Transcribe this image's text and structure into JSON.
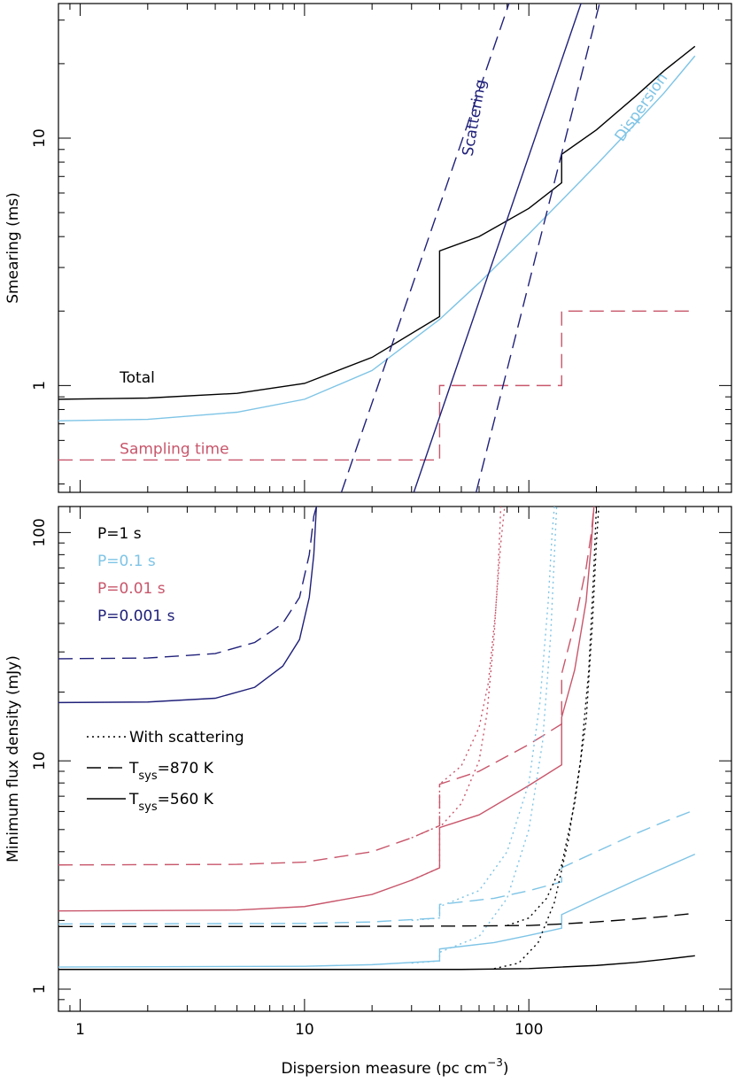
{
  "colors": {
    "black": "#000000",
    "light_blue": "#7ec4e6",
    "red": "#c8566b",
    "navy": "#20207a"
  },
  "chart_data": [
    {
      "type": "line",
      "panel": "top",
      "xscale": "log",
      "yscale": "log",
      "xlim": [
        0.8,
        800
      ],
      "ylim": [
        0.37,
        35
      ],
      "xlabel": "",
      "ylabel": "Smearing (ms)",
      "x_ticks": [
        1,
        10,
        100
      ],
      "x_tick_labels": [
        "",
        "",
        ""
      ],
      "y_ticks": [
        1,
        10
      ],
      "y_tick_labels": [
        "1",
        "10"
      ],
      "annotations": [
        {
          "text": "Total",
          "color": "black",
          "x": 1.5,
          "y": 1.03,
          "angle": 0
        },
        {
          "text": "Sampling time",
          "color": "red",
          "x": 1.5,
          "y": 0.53,
          "angle": 0
        },
        {
          "text": "Scattering",
          "color": "navy",
          "x": 60,
          "y": 12,
          "angle": -80
        },
        {
          "text": "Dispersion",
          "color": "light_blue",
          "x": 330,
          "y": 13,
          "angle": -55
        }
      ],
      "series": [
        {
          "name": "Total",
          "color": "black",
          "dash": "solid",
          "x": [
            0.8,
            2,
            5,
            10,
            20,
            40,
            40,
            60,
            100,
            140,
            140,
            200,
            300,
            400,
            550
          ],
          "y": [
            0.88,
            0.89,
            0.93,
            1.02,
            1.3,
            1.9,
            3.5,
            4.0,
            5.2,
            6.6,
            8.6,
            10.8,
            14.8,
            18.7,
            23.5
          ]
        },
        {
          "name": "Dispersion",
          "color": "light_blue",
          "dash": "solid",
          "x": [
            0.8,
            2,
            5,
            10,
            20,
            40,
            60,
            100,
            140,
            200,
            300,
            400,
            550
          ],
          "y": [
            0.72,
            0.73,
            0.78,
            0.88,
            1.15,
            1.85,
            2.6,
            4.1,
            5.6,
            7.8,
            11.5,
            15.2,
            21.5
          ]
        },
        {
          "name": "Sampling time",
          "color": "red",
          "dash": "dashed",
          "x": [
            0.8,
            40,
            40,
            140,
            140,
            550
          ],
          "y": [
            0.5,
            0.5,
            1.0,
            1.0,
            2.0,
            2.0
          ]
        },
        {
          "name": "Scattering",
          "color": "navy",
          "dash": "solid",
          "x": [
            30.7,
            170.7
          ],
          "y": [
            0.37,
            35
          ]
        },
        {
          "name": "Scattering upper",
          "color": "navy",
          "dash": "dashed",
          "x": [
            14.6,
            81.5
          ],
          "y": [
            0.37,
            35
          ]
        },
        {
          "name": "Scattering lower",
          "color": "navy",
          "dash": "dashed",
          "x": [
            58.2,
            206.5
          ],
          "y": [
            0.37,
            35
          ]
        }
      ]
    },
    {
      "type": "line",
      "panel": "bottom",
      "xscale": "log",
      "yscale": "log",
      "xlim": [
        0.8,
        800
      ],
      "ylim": [
        0.8,
        130
      ],
      "xlabel": "Dispersion measure (pc cm",
      "xlabel_sup": "−3",
      "xlabel_end": ")",
      "ylabel": "Minimum flux density (mJy)",
      "x_ticks": [
        1,
        10,
        100
      ],
      "x_tick_labels": [
        "1",
        "10",
        "100"
      ],
      "y_ticks": [
        1,
        10,
        100
      ],
      "y_tick_labels": [
        "1",
        "10",
        "100"
      ],
      "legend_periods": [
        {
          "text": "P=1 s",
          "color": "black"
        },
        {
          "text": "P=0.1 s",
          "color": "light_blue"
        },
        {
          "text": "P=0.01 s",
          "color": "red"
        },
        {
          "text": "P=0.001 s",
          "color": "navy"
        }
      ],
      "legend_styles": [
        {
          "text": "With scattering",
          "dash": "dotted"
        },
        {
          "text": "T",
          "sub": "sys",
          "text_end": "=870 K",
          "dash": "dashed"
        },
        {
          "text": "T",
          "sub": "sys",
          "text_end": "=560 K",
          "dash": "solid"
        }
      ],
      "series": [
        {
          "name": "P=0.001 s, Tsys=560 K",
          "color": "navy",
          "dash": "solid",
          "x": [
            0.8,
            2,
            4,
            6,
            8,
            9.5,
            10.5,
            11,
            11.3
          ],
          "y": [
            18,
            18.1,
            18.8,
            21,
            26,
            34,
            52,
            80,
            130
          ]
        },
        {
          "name": "P=0.001 s, Tsys=870 K",
          "color": "navy",
          "dash": "dashed",
          "x": [
            0.8,
            2,
            4,
            6,
            8,
            9.5,
            10.5,
            11,
            11.3
          ],
          "y": [
            28,
            28.2,
            29.5,
            33,
            40,
            52,
            80,
            118,
            130
          ]
        },
        {
          "name": "P=0.01 s, Tsys=560 K",
          "color": "red",
          "dash": "solid",
          "x": [
            0.8,
            5,
            10,
            20,
            30,
            40,
            40,
            60,
            100,
            140,
            140,
            160,
            180,
            190,
            195
          ],
          "y": [
            2.2,
            2.22,
            2.3,
            2.6,
            3.0,
            3.4,
            5.1,
            5.8,
            7.8,
            9.6,
            15.5,
            25,
            50,
            90,
            130
          ]
        },
        {
          "name": "P=0.01 s, Tsys=870 K",
          "color": "red",
          "dash": "dashed",
          "x": [
            0.8,
            5,
            10,
            20,
            30,
            40,
            40,
            60,
            100,
            140,
            140,
            160,
            180,
            190,
            195
          ],
          "y": [
            3.5,
            3.52,
            3.6,
            4.0,
            4.6,
            5.2,
            7.9,
            9.0,
            11.8,
            14.5,
            24,
            40,
            70,
            100,
            130
          ]
        },
        {
          "name": "P=0.01 s, with scattering 560 K",
          "color": "red",
          "dash": "dotted",
          "x": [
            30,
            40,
            40,
            50,
            60,
            65,
            70,
            73,
            75
          ],
          "y": [
            3.0,
            3.4,
            5.1,
            6.5,
            10,
            16,
            35,
            70,
            130
          ]
        },
        {
          "name": "P=0.01 s, with scattering 870 K",
          "color": "red",
          "dash": "dotted",
          "x": [
            30,
            40,
            40,
            50,
            60,
            66,
            71,
            75,
            78
          ],
          "y": [
            4.6,
            5.2,
            7.9,
            9.5,
            14,
            22,
            45,
            90,
            130
          ]
        },
        {
          "name": "P=0.1 s, Tsys=560 K",
          "color": "light_blue",
          "dash": "solid",
          "x": [
            0.8,
            10,
            20,
            40,
            40,
            70,
            100,
            140,
            140,
            200,
            300,
            400,
            550
          ],
          "y": [
            1.25,
            1.26,
            1.28,
            1.33,
            1.5,
            1.6,
            1.72,
            1.85,
            2.12,
            2.5,
            3.0,
            3.4,
            3.9
          ]
        },
        {
          "name": "P=0.1 s, Tsys=870 K",
          "color": "light_blue",
          "dash": "dashed",
          "x": [
            0.8,
            10,
            20,
            40,
            40,
            70,
            100,
            140,
            140,
            200,
            300,
            400,
            550
          ],
          "y": [
            1.93,
            1.94,
            1.97,
            2.05,
            2.35,
            2.5,
            2.7,
            2.95,
            3.4,
            4.0,
            4.8,
            5.4,
            6.1
          ]
        },
        {
          "name": "P=0.1 s, with scattering 560 K",
          "color": "light_blue",
          "dash": "dotted",
          "x": [
            30,
            40,
            40,
            60,
            80,
            100,
            115,
            125,
            130,
            133
          ],
          "y": [
            1.3,
            1.33,
            1.45,
            1.7,
            2.5,
            5,
            12,
            35,
            80,
            130
          ]
        },
        {
          "name": "P=0.1 s, with scattering 870 K",
          "color": "light_blue",
          "dash": "dotted",
          "x": [
            30,
            40,
            40,
            60,
            80,
            100,
            112,
            122,
            127,
            130
          ],
          "y": [
            2.0,
            2.05,
            2.3,
            2.7,
            4,
            8,
            18,
            50,
            100,
            130
          ]
        },
        {
          "name": "P=1 s, Tsys=560 K",
          "color": "black",
          "dash": "solid",
          "x": [
            0.8,
            10,
            50,
            100,
            140,
            200,
            300,
            400,
            550
          ],
          "y": [
            1.22,
            1.22,
            1.22,
            1.23,
            1.25,
            1.27,
            1.31,
            1.35,
            1.4
          ]
        },
        {
          "name": "P=1 s, Tsys=870 K",
          "color": "black",
          "dash": "dashed",
          "x": [
            0.8,
            10,
            50,
            100,
            140,
            200,
            300,
            400,
            550
          ],
          "y": [
            1.88,
            1.88,
            1.89,
            1.9,
            1.93,
            1.97,
            2.03,
            2.08,
            2.15
          ]
        },
        {
          "name": "P=1 s, with scattering 560 K",
          "color": "black",
          "dash": "dotted",
          "x": [
            70,
            90,
            110,
            130,
            150,
            170,
            185,
            195,
            200
          ],
          "y": [
            1.23,
            1.3,
            1.6,
            2.4,
            4.5,
            10,
            25,
            70,
            130
          ]
        },
        {
          "name": "P=1 s, with scattering 870 K",
          "color": "black",
          "dash": "dotted",
          "x": [
            80,
            100,
            120,
            140,
            160,
            180,
            192,
            200,
            205
          ],
          "y": [
            1.9,
            2.05,
            2.5,
            3.5,
            6.5,
            15,
            40,
            90,
            130
          ]
        }
      ]
    }
  ]
}
